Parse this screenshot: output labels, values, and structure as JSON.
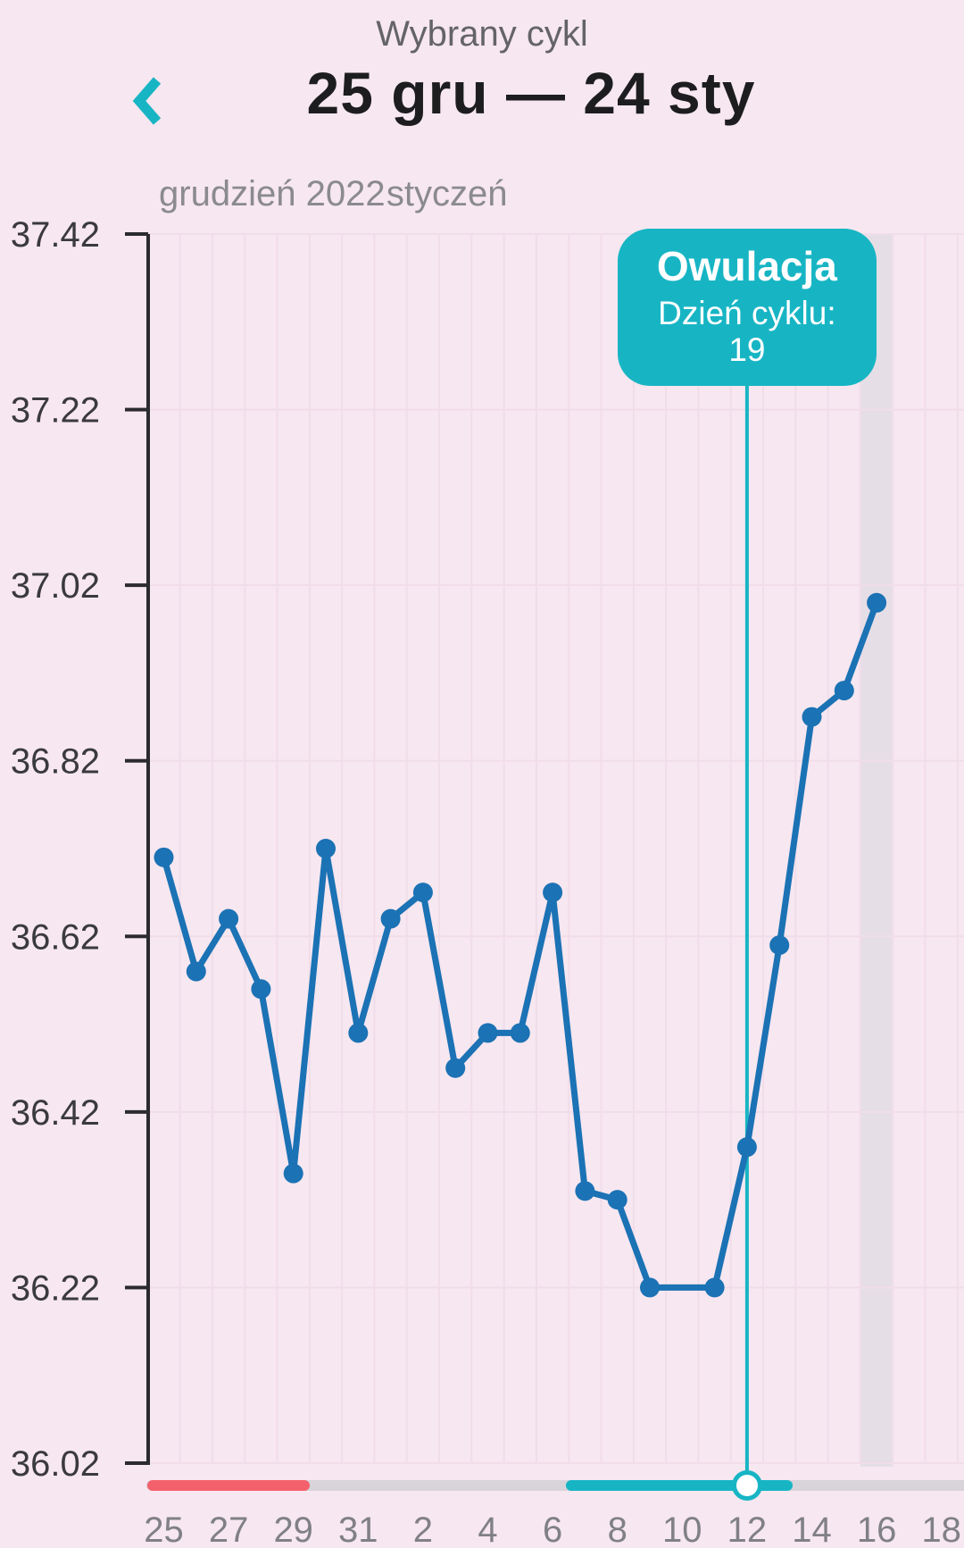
{
  "header": {
    "subtitle": "Wybrany cykl",
    "title": "25 gru — 24 sty"
  },
  "colors": {
    "background": "#f7e7f0",
    "accent_teal": "#17b5c4",
    "line_blue": "#1b72b4",
    "period_red": "#f4616c",
    "track_gray": "#d9d3da",
    "today_band": "#e6dee6",
    "grid_line": "#f0dde9",
    "axis_black": "#2b2b2e",
    "y_label_color": "#3a3a3d",
    "x_label_color": "#808086",
    "month_label_color": "#8a8a8f"
  },
  "chart_data": {
    "type": "line",
    "title": "",
    "xlabel": "",
    "ylabel": "",
    "y_axis": {
      "min": 36.02,
      "max": 37.42,
      "step": 0.2,
      "tick_labels": [
        "37.42",
        "37.22",
        "37.02",
        "36.82",
        "36.62",
        "36.42",
        "36.22",
        "36.02"
      ]
    },
    "months": [
      {
        "label": "grudzień 2022",
        "day_index": -0.15
      },
      {
        "label": "styczeń",
        "day_index": 6.87
      }
    ],
    "x_tick_labels": [
      {
        "day_index": 0,
        "label": "25"
      },
      {
        "day_index": 2,
        "label": "27"
      },
      {
        "day_index": 4,
        "label": "29"
      },
      {
        "day_index": 6,
        "label": "31"
      },
      {
        "day_index": 8,
        "label": "2"
      },
      {
        "day_index": 10,
        "label": "4"
      },
      {
        "day_index": 12,
        "label": "6"
      },
      {
        "day_index": 14,
        "label": "8"
      },
      {
        "day_index": 16,
        "label": "10"
      },
      {
        "day_index": 18,
        "label": "12"
      },
      {
        "day_index": 20,
        "label": "14"
      },
      {
        "day_index": 22,
        "label": "16"
      },
      {
        "day_index": 24,
        "label": "18"
      }
    ],
    "points": [
      {
        "day_index": 0,
        "value": 36.71
      },
      {
        "day_index": 1,
        "value": 36.58
      },
      {
        "day_index": 2,
        "value": 36.64
      },
      {
        "day_index": 3,
        "value": 36.56
      },
      {
        "day_index": 4,
        "value": 36.35
      },
      {
        "day_index": 5,
        "value": 36.72
      },
      {
        "day_index": 6,
        "value": 36.51
      },
      {
        "day_index": 7,
        "value": 36.64
      },
      {
        "day_index": 8,
        "value": 36.67
      },
      {
        "day_index": 9,
        "value": 36.47
      },
      {
        "day_index": 10,
        "value": 36.51
      },
      {
        "day_index": 11,
        "value": 36.51
      },
      {
        "day_index": 12,
        "value": 36.67
      },
      {
        "day_index": 13,
        "value": 36.33
      },
      {
        "day_index": 14,
        "value": 36.32
      },
      {
        "day_index": 15,
        "value": 36.22
      },
      {
        "day_index": 17,
        "value": 36.22
      },
      {
        "day_index": 18,
        "value": 36.38
      },
      {
        "day_index": 19,
        "value": 36.61
      },
      {
        "day_index": 20,
        "value": 36.87
      },
      {
        "day_index": 21,
        "value": 36.9
      },
      {
        "day_index": 22,
        "value": 37.0
      }
    ],
    "ovulation": {
      "day_index": 18,
      "label": "Owulacja",
      "sub_label": "Dzień cyklu: 19"
    },
    "today_band_day_index": 22,
    "slider": {
      "period_segment": {
        "from_index": -0.5,
        "to_index": 4.5
      },
      "fertile_segment": {
        "from_index": 12.4,
        "to_index": 19.4
      },
      "knob_day_index": 18
    }
  }
}
